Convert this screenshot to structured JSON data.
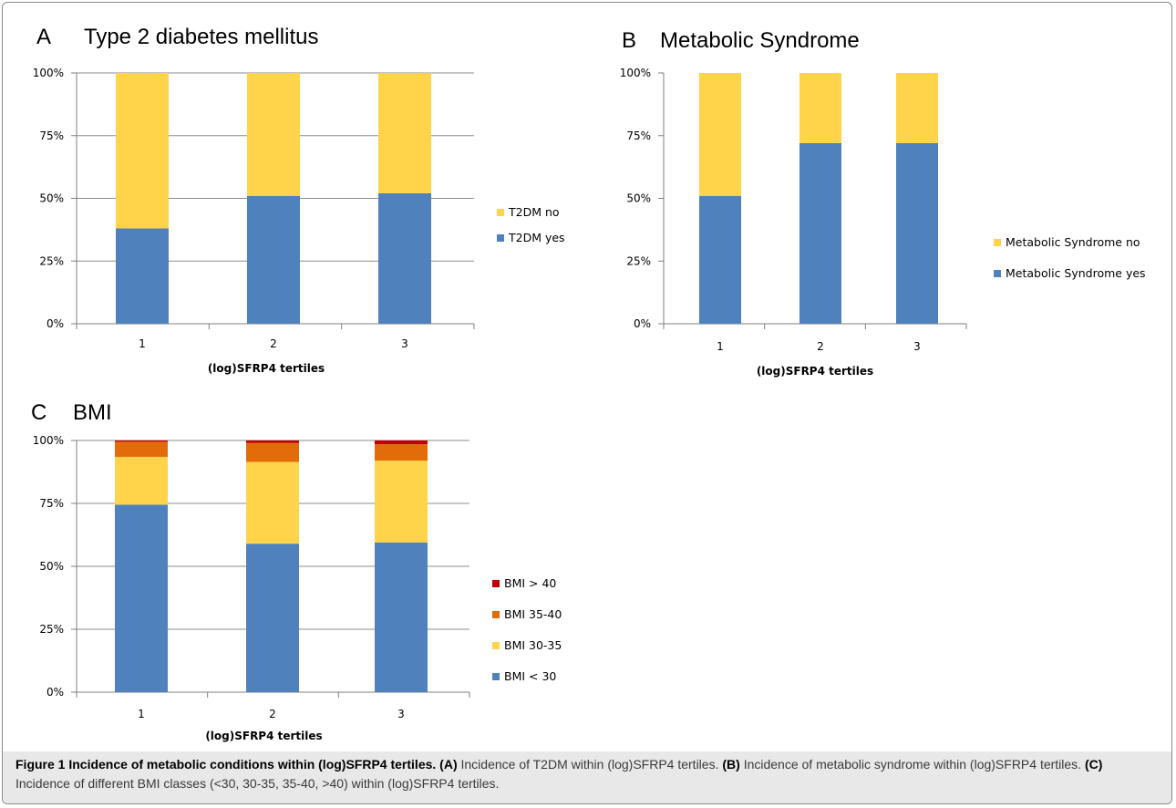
{
  "panels": [
    {
      "letter": "A",
      "title": "Type 2 diabetes mellitus"
    },
    {
      "letter": "B",
      "title": "Metabolic Syndrome"
    },
    {
      "letter": "C",
      "title": "BMI"
    }
  ],
  "colors": {
    "blue": "#4f81bd",
    "yellow": "#ffd34a",
    "orange": "#e36c0a",
    "red": "#c00000",
    "grid": "#8c8c8c"
  },
  "chart_data": [
    {
      "type": "bar",
      "stacked": true,
      "percent": true,
      "title": "Type 2 diabetes mellitus",
      "categories": [
        "1",
        "2",
        "3"
      ],
      "xlabel": "(log)SFRP4 tertiles",
      "ylabel": "",
      "ylim": [
        0,
        100
      ],
      "yticks": [
        "0%",
        "25%",
        "50%",
        "75%",
        "100%"
      ],
      "grid": true,
      "legend_position": "right",
      "series": [
        {
          "name": "T2DM yes",
          "color": "#4f81bd",
          "values": [
            38,
            51,
            52
          ]
        },
        {
          "name": "T2DM no",
          "color": "#ffd34a",
          "values": [
            62,
            49,
            48
          ]
        }
      ]
    },
    {
      "type": "bar",
      "stacked": true,
      "percent": true,
      "title": "Metabolic Syndrome",
      "categories": [
        "1",
        "2",
        "3"
      ],
      "xlabel": "(log)SFRP4 tertiles",
      "ylabel": "",
      "ylim": [
        0,
        100
      ],
      "yticks": [
        "0%",
        "25%",
        "50%",
        "75%",
        "100%"
      ],
      "grid": false,
      "legend_position": "right",
      "series": [
        {
          "name": "Metabolic Syndrome yes",
          "color": "#4f81bd",
          "values": [
            51,
            72,
            72
          ]
        },
        {
          "name": "Metabolic Syndrome no",
          "color": "#ffd34a",
          "values": [
            49,
            28,
            28
          ]
        }
      ]
    },
    {
      "type": "bar",
      "stacked": true,
      "percent": true,
      "title": "BMI",
      "categories": [
        "1",
        "2",
        "3"
      ],
      "xlabel": "(log)SFRP4 tertiles",
      "ylabel": "",
      "ylim": [
        0,
        100
      ],
      "yticks": [
        "0%",
        "25%",
        "50%",
        "75%",
        "100%"
      ],
      "grid": true,
      "legend_position": "right",
      "series": [
        {
          "name": "BMI < 30",
          "color": "#4f81bd",
          "values": [
            74.5,
            59,
            59.5
          ]
        },
        {
          "name": "BMI 30-35",
          "color": "#ffd34a",
          "values": [
            19,
            32.5,
            32.5
          ]
        },
        {
          "name": "BMI 35-40",
          "color": "#e36c0a",
          "values": [
            6,
            7.5,
            6.5
          ]
        },
        {
          "name": "BMI > 40",
          "color": "#c00000",
          "values": [
            0.5,
            1,
            1.5
          ]
        }
      ]
    }
  ],
  "caption": {
    "label": "Figure 1 Incidence of metabolic conditions within (log)SFRP4 tertiles.",
    "a_tag": "(A)",
    "a_text": "Incidence of T2DM within (log)SFRP4 tertiles.",
    "b_tag": "(B)",
    "b_text": "Incidence of metabolic syndrome within (log)SFRP4 tertiles.",
    "c_tag": "(C)",
    "c_text": "Incidence of different BMI classes (<30, 30-35, 35-40, >40) within (log)SFRP4 tertiles."
  }
}
